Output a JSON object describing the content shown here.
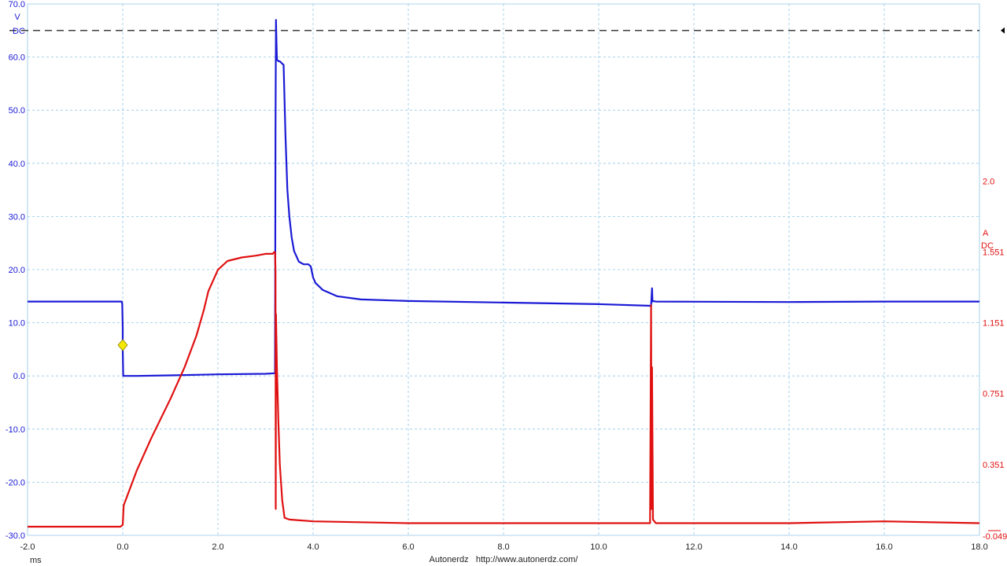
{
  "chart_data": {
    "type": "line",
    "xlim": [
      -2.0,
      18.0
    ],
    "x_ticks": [
      "-2.0",
      "0.0",
      "2.0",
      "4.0",
      "6.0",
      "8.0",
      "10.0",
      "12.0",
      "14.0",
      "16.0",
      "18.0"
    ],
    "x_unit": "ms",
    "grid": true,
    "left_axis": {
      "unit": "V",
      "coupling": "DC",
      "color": "#1a1ad6",
      "ylim": [
        -30.0,
        70.0
      ],
      "ticks": [
        "70.0",
        "60.0",
        "50.0",
        "40.0",
        "30.0",
        "20.0",
        "10.0",
        "0.0",
        "-10.0",
        "-20.0",
        "-30.0"
      ],
      "tick_values": [
        70,
        60,
        50,
        40,
        30,
        20,
        10,
        0,
        -10,
        -20,
        -30
      ]
    },
    "right_axis": {
      "unit": "A",
      "coupling": "DC",
      "color": "#e01010",
      "ticks": [
        "2.0",
        "1.551",
        "1.151",
        "0.751",
        "0.351",
        "-0.049"
      ],
      "tick_values": [
        1.951,
        1.551,
        1.151,
        0.751,
        0.351,
        -0.049
      ],
      "scale": [
        -0.049,
        2.951
      ]
    },
    "trigger_level_v": 65,
    "trigger_marker": {
      "x": 0.0,
      "y": 5.8,
      "color": "#f4e800"
    },
    "series": [
      {
        "axis": "left",
        "color": "#1a1ad6",
        "x": [
          -2.0,
          -0.02,
          -0.01,
          0.0,
          0.0,
          0.01,
          0.3,
          1.0,
          2.0,
          3.0,
          3.2,
          3.21,
          3.22,
          3.23,
          3.24,
          3.28,
          3.3,
          3.38,
          3.42,
          3.46,
          3.5,
          3.55,
          3.6,
          3.7,
          3.8,
          3.9,
          3.95,
          4.0,
          4.05,
          4.2,
          4.5,
          5.0,
          6.0,
          8.0,
          10.0,
          11.1,
          11.12,
          11.13,
          11.14,
          11.2,
          14.0,
          16.0,
          18.0
        ],
        "y": [
          14.0,
          14.0,
          13.5,
          9.0,
          5.0,
          0.0,
          0.0,
          0.1,
          0.3,
          0.4,
          0.5,
          46.0,
          67.0,
          63.0,
          59.5,
          59.2,
          59.2,
          58.5,
          45.0,
          35.0,
          30.0,
          26.0,
          23.5,
          21.5,
          21.0,
          21.0,
          20.6,
          18.5,
          17.5,
          16.2,
          15.0,
          14.4,
          14.1,
          13.8,
          13.5,
          13.2,
          16.5,
          14.0,
          14.1,
          14.0,
          13.9,
          14.0,
          14.0
        ]
      },
      {
        "axis": "right",
        "color": "#e01010",
        "x": [
          -2.0,
          -0.05,
          0.0,
          0.02,
          0.3,
          0.6,
          1.0,
          1.3,
          1.55,
          1.7,
          1.8,
          2.0,
          2.2,
          2.5,
          2.8,
          3.0,
          3.15,
          3.18,
          3.2,
          3.21,
          3.215,
          3.22,
          3.24,
          3.27,
          3.3,
          3.35,
          3.4,
          3.5,
          4.0,
          6.0,
          8.0,
          11.08,
          11.1,
          11.11,
          11.12,
          11.14,
          11.2,
          14.0,
          16.0,
          18.0
        ],
        "y": [
          0.0,
          0.0,
          0.01,
          0.12,
          0.32,
          0.5,
          0.72,
          0.9,
          1.08,
          1.22,
          1.33,
          1.45,
          1.5,
          1.52,
          1.53,
          1.54,
          1.54,
          1.55,
          1.55,
          1.45,
          0.1,
          1.2,
          0.9,
          0.6,
          0.35,
          0.15,
          0.05,
          0.04,
          0.03,
          0.02,
          0.02,
          0.02,
          1.25,
          0.1,
          0.9,
          0.04,
          0.02,
          0.02,
          0.03,
          0.02
        ]
      }
    ]
  },
  "footer": {
    "x_unit_label": "ms",
    "watermark": "Autonerdz   http://www.autonerdz.com/"
  }
}
